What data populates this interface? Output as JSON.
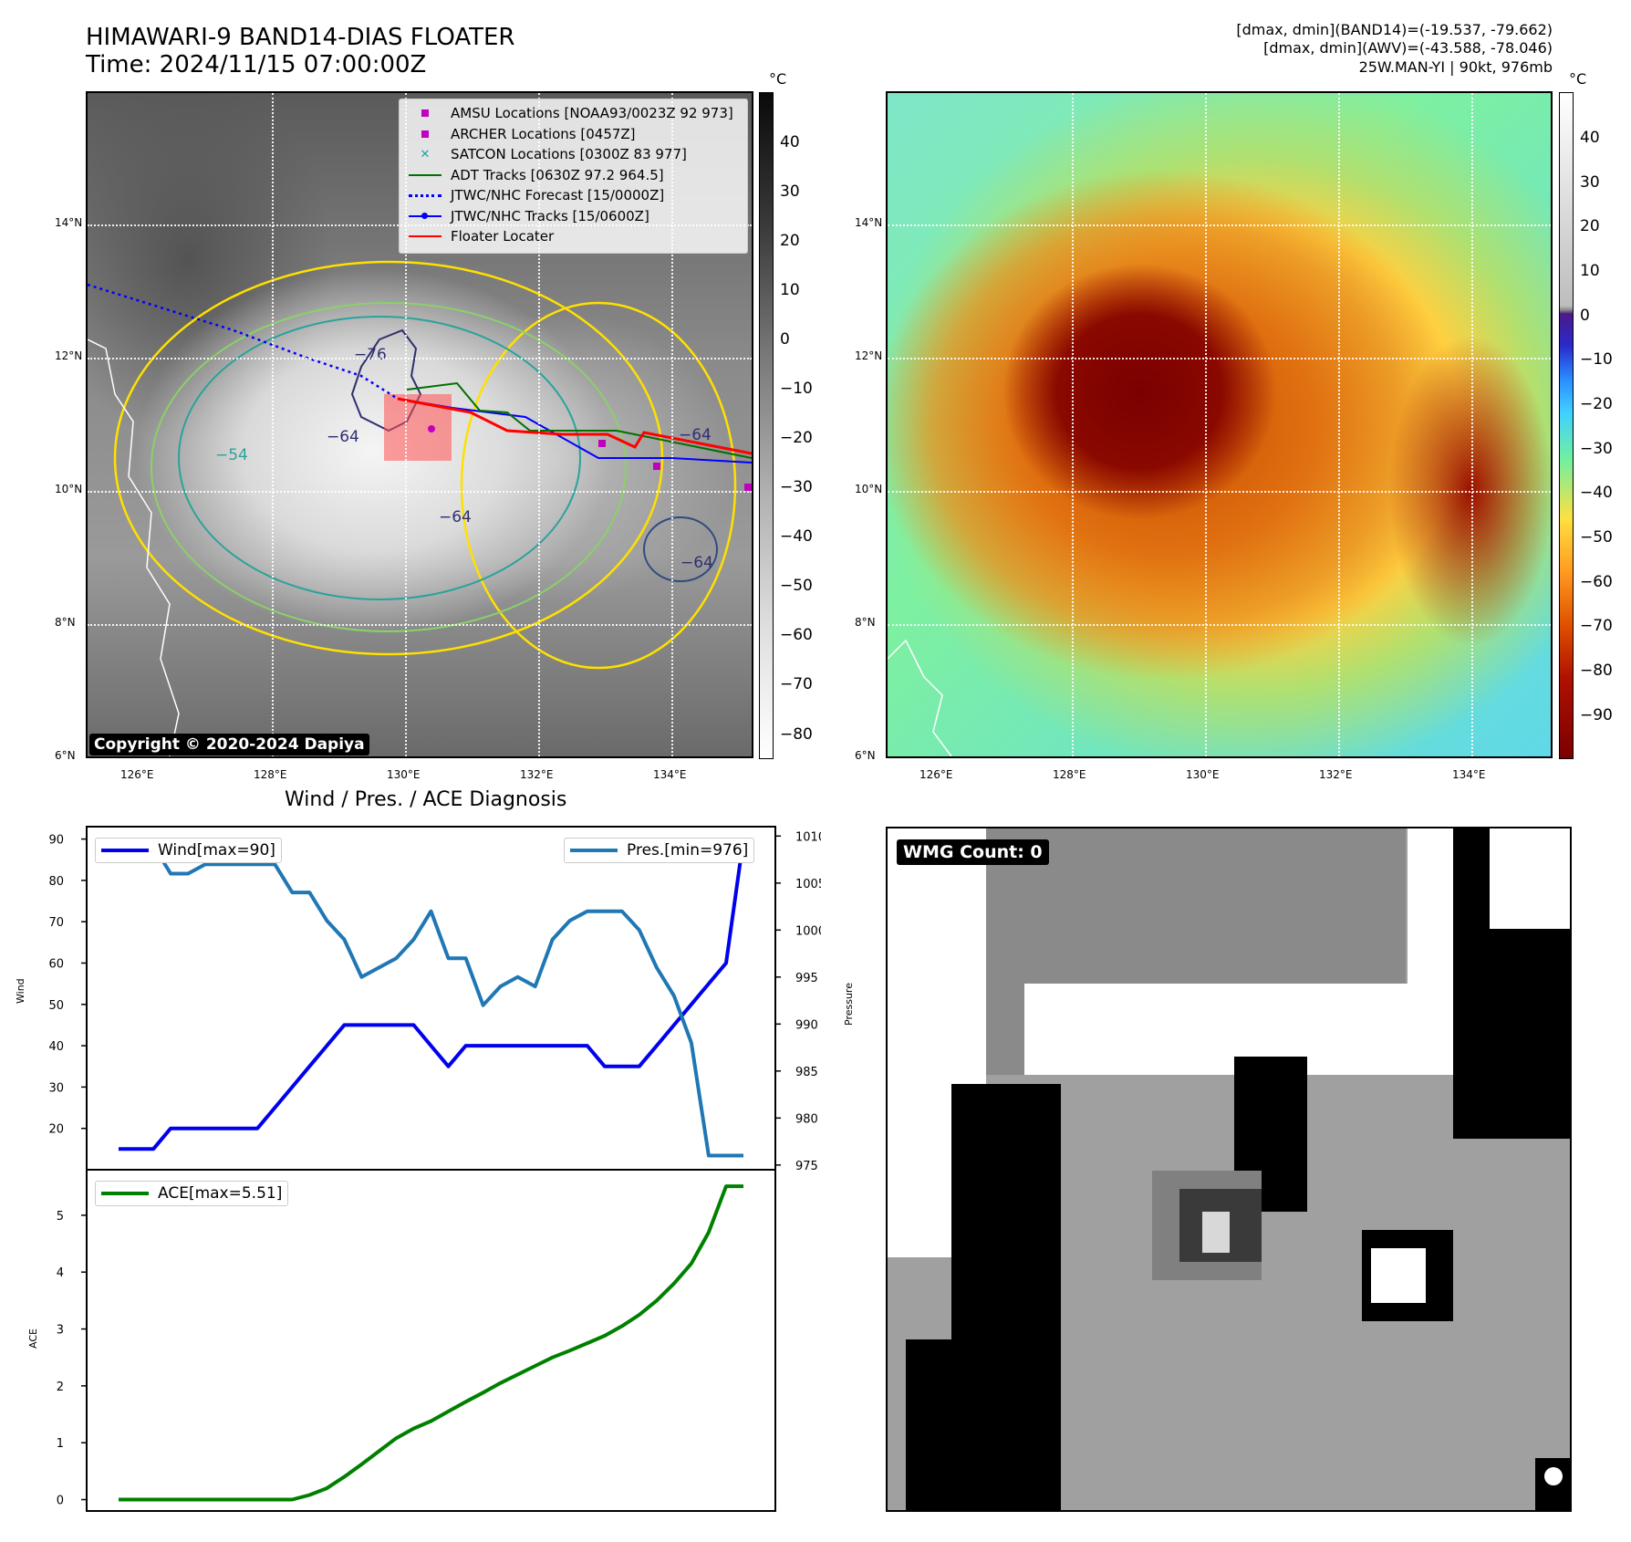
{
  "header": {
    "title": "HIMAWARI-9 BAND14-DIAS FLOATER",
    "time": "Time: 2024/11/15 07:00:00Z",
    "info_line1": "[dmax, dmin](BAND14)=(-19.537, -79.662)",
    "info_line2": "[dmax, dmin](AWV)=(-43.588, -78.046)",
    "info_line3": "25W.MAN-YI | 90kt, 976mb"
  },
  "map_axes": {
    "lon_labels": [
      "126°E",
      "128°E",
      "130°E",
      "132°E",
      "134°E"
    ],
    "lat_labels": [
      "14°N",
      "12°N",
      "10°N",
      "8°N",
      "6°N"
    ]
  },
  "ir_panel": {
    "colorbar_unit": "°C",
    "colorbar_ticks": [
      "40",
      "30",
      "20",
      "10",
      "0",
      "−10",
      "−20",
      "−30",
      "−40",
      "−50",
      "−60",
      "−70",
      "−80"
    ],
    "contour_labels": [
      "−76",
      "−64",
      "−54",
      "−64",
      "−64",
      "−64"
    ],
    "copyright": "Copyright © 2020-2024 Dapiya",
    "legend": [
      {
        "label": "AMSU Locations [NOAA93/0023Z 92 973]",
        "symbol": "square",
        "color": "#c000c0"
      },
      {
        "label": "ARCHER Locations [0457Z]",
        "symbol": "square",
        "color": "#c000c0"
      },
      {
        "label": "SATCON Locations [0300Z 83 977]",
        "symbol": "x",
        "color": "#1aa5a5"
      },
      {
        "label": "ADT Tracks [0630Z 97.2 964.5]",
        "symbol": "line",
        "color": "#007000"
      },
      {
        "label": "JTWC/NHC Forecast [15/0000Z]",
        "symbol": "dotted",
        "color": "#0000ff"
      },
      {
        "label": "JTWC/NHC Tracks [15/0600Z]",
        "symbol": "line-dot",
        "color": "#0000ff"
      },
      {
        "label": "Floater Locater",
        "symbol": "line",
        "color": "#ff0000"
      }
    ]
  },
  "awv_panel": {
    "colorbar_unit": "°C",
    "colorbar_ticks": [
      "40",
      "30",
      "20",
      "10",
      "0",
      "−10",
      "−20",
      "−30",
      "−40",
      "−50",
      "−60",
      "−70",
      "−80",
      "−90"
    ]
  },
  "diagnosis": {
    "title": "Wind / Pres. / ACE Diagnosis",
    "wind_ylabel": "Wind",
    "pres_ylabel": "Pressure",
    "ace_ylabel": "ACE",
    "wind_legend": "Wind[max=90]",
    "pres_legend": "Pres.[min=976]",
    "ace_legend": "ACE[max=5.51]",
    "wind_color": "#0000ee",
    "pres_color": "#1f77b4",
    "ace_color": "#008000"
  },
  "wmg_panel": {
    "label": "WMG Count: 0"
  },
  "chart_data": [
    {
      "type": "line",
      "title": "Wind / Pres. / ACE Diagnosis",
      "ylabel": "Wind",
      "ylim": [
        10,
        93
      ],
      "yticks": [
        20,
        30,
        40,
        50,
        60,
        70,
        80,
        90
      ],
      "x": [
        0,
        1,
        2,
        3,
        4,
        5,
        6,
        7,
        8,
        9,
        10,
        11,
        12,
        13,
        14,
        15,
        16,
        17,
        18,
        19,
        20,
        21,
        22,
        23,
        24,
        25,
        26,
        27,
        28,
        29,
        30,
        31,
        32,
        33,
        34,
        35,
        36
      ],
      "series": [
        {
          "name": "Wind[max=90]",
          "values": [
            15,
            15,
            15,
            20,
            20,
            20,
            20,
            20,
            20,
            25,
            30,
            35,
            40,
            45,
            45,
            45,
            45,
            45,
            40,
            35,
            40,
            40,
            40,
            40,
            40,
            40,
            40,
            40,
            35,
            35,
            35,
            40,
            45,
            50,
            55,
            60,
            90
          ]
        }
      ]
    },
    {
      "type": "line",
      "ylabel": "Pressure",
      "ylim": [
        974.5,
        1011
      ],
      "yticks": [
        975,
        980,
        985,
        990,
        995,
        1000,
        1005,
        1010
      ],
      "x": [
        0,
        1,
        2,
        3,
        4,
        5,
        6,
        7,
        8,
        9,
        10,
        11,
        12,
        13,
        14,
        15,
        16,
        17,
        18,
        19,
        20,
        21,
        22,
        23,
        24,
        25,
        26,
        27,
        28,
        29,
        30,
        31,
        32,
        33,
        34,
        35,
        36
      ],
      "series": [
        {
          "name": "Pres.[min=976]",
          "values": [
            1009,
            1009,
            1009,
            1006,
            1006,
            1007,
            1007,
            1007,
            1007,
            1007,
            1004,
            1004,
            1001,
            999,
            995,
            996,
            997,
            999,
            1002,
            997,
            997,
            992,
            994,
            995,
            994,
            999,
            1001,
            1002,
            1002,
            1002,
            1000,
            996,
            993,
            988,
            976,
            976,
            976
          ]
        }
      ]
    },
    {
      "type": "line",
      "ylabel": "ACE",
      "ylim": [
        -0.2,
        5.8
      ],
      "yticks": [
        0,
        1,
        2,
        3,
        4,
        5
      ],
      "x": [
        0,
        1,
        2,
        3,
        4,
        5,
        6,
        7,
        8,
        9,
        10,
        11,
        12,
        13,
        14,
        15,
        16,
        17,
        18,
        19,
        20,
        21,
        22,
        23,
        24,
        25,
        26,
        27,
        28,
        29,
        30,
        31,
        32,
        33,
        34,
        35,
        36
      ],
      "series": [
        {
          "name": "ACE[max=5.51]",
          "values": [
            0,
            0,
            0,
            0,
            0,
            0,
            0,
            0,
            0,
            0,
            0,
            0.08,
            0.2,
            0.4,
            0.62,
            0.85,
            1.08,
            1.25,
            1.38,
            1.55,
            1.72,
            1.88,
            2.05,
            2.2,
            2.35,
            2.5,
            2.62,
            2.75,
            2.88,
            3.05,
            3.25,
            3.5,
            3.8,
            4.15,
            4.7,
            5.51,
            5.51
          ]
        }
      ]
    }
  ]
}
